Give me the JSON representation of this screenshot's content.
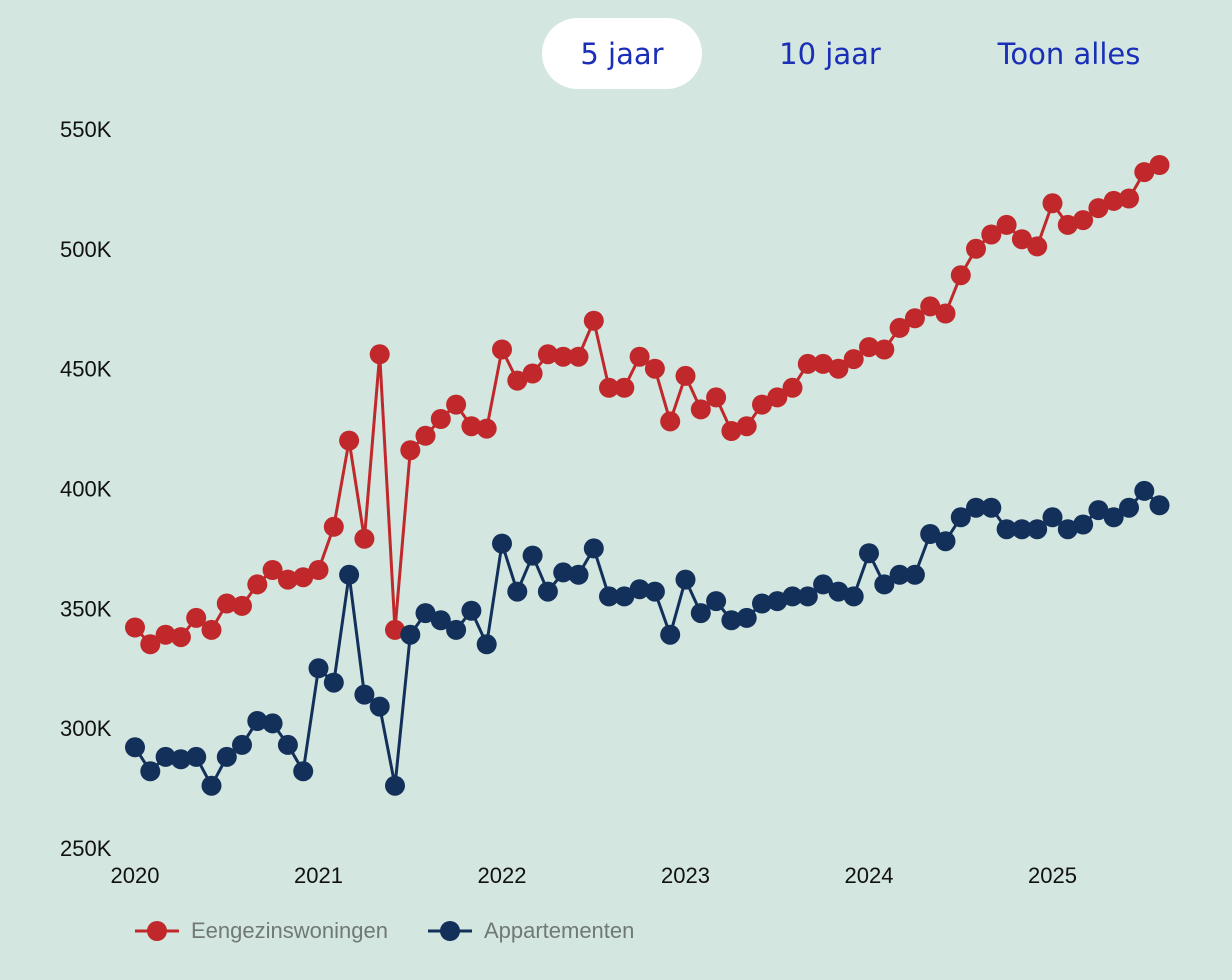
{
  "range_tabs": [
    {
      "label": "5 jaar",
      "active": true
    },
    {
      "label": "10 jaar",
      "active": false
    },
    {
      "label": "Toon alles",
      "active": false
    }
  ],
  "chart_data": {
    "type": "line",
    "title": "",
    "xlabel": "",
    "ylabel": "",
    "x_start": "2020-01",
    "x_ticks": [
      "2020",
      "2021",
      "2022",
      "2023",
      "2024",
      "2025"
    ],
    "y_ticks": [
      "250K",
      "300K",
      "350K",
      "400K",
      "450K",
      "500K",
      "550K"
    ],
    "ylim": [
      250000,
      550000
    ],
    "grid": false,
    "legend_position": "bottom-left",
    "series": [
      {
        "name": "Eengezinswoningen",
        "color": "#c0282b",
        "values": [
          342000,
          335000,
          339000,
          338000,
          346000,
          341000,
          352000,
          351000,
          360000,
          366000,
          362000,
          363000,
          366000,
          384000,
          420000,
          379000,
          456000,
          341000,
          416000,
          422000,
          429000,
          435000,
          426000,
          425000,
          458000,
          445000,
          448000,
          456000,
          455000,
          455000,
          470000,
          442000,
          442000,
          455000,
          450000,
          428000,
          447000,
          433000,
          438000,
          424000,
          426000,
          435000,
          438000,
          442000,
          452000,
          452000,
          450000,
          454000,
          459000,
          458000,
          467000,
          471000,
          476000,
          473000,
          489000,
          500000,
          506000,
          510000,
          504000,
          501000,
          519000,
          510000,
          512000,
          517000,
          520000,
          521000,
          532000,
          535000
        ]
      },
      {
        "name": "Appartementen",
        "color": "#12305a",
        "values": [
          292000,
          282000,
          288000,
          287000,
          288000,
          276000,
          288000,
          293000,
          303000,
          302000,
          293000,
          282000,
          325000,
          319000,
          364000,
          314000,
          309000,
          276000,
          339000,
          348000,
          345000,
          341000,
          349000,
          335000,
          377000,
          357000,
          372000,
          357000,
          365000,
          364000,
          375000,
          355000,
          355000,
          358000,
          357000,
          339000,
          362000,
          348000,
          353000,
          345000,
          346000,
          352000,
          353000,
          355000,
          355000,
          360000,
          357000,
          355000,
          373000,
          360000,
          364000,
          364000,
          381000,
          378000,
          388000,
          392000,
          392000,
          383000,
          383000,
          383000,
          388000,
          383000,
          385000,
          391000,
          388000,
          392000,
          399000,
          393000
        ]
      }
    ]
  }
}
